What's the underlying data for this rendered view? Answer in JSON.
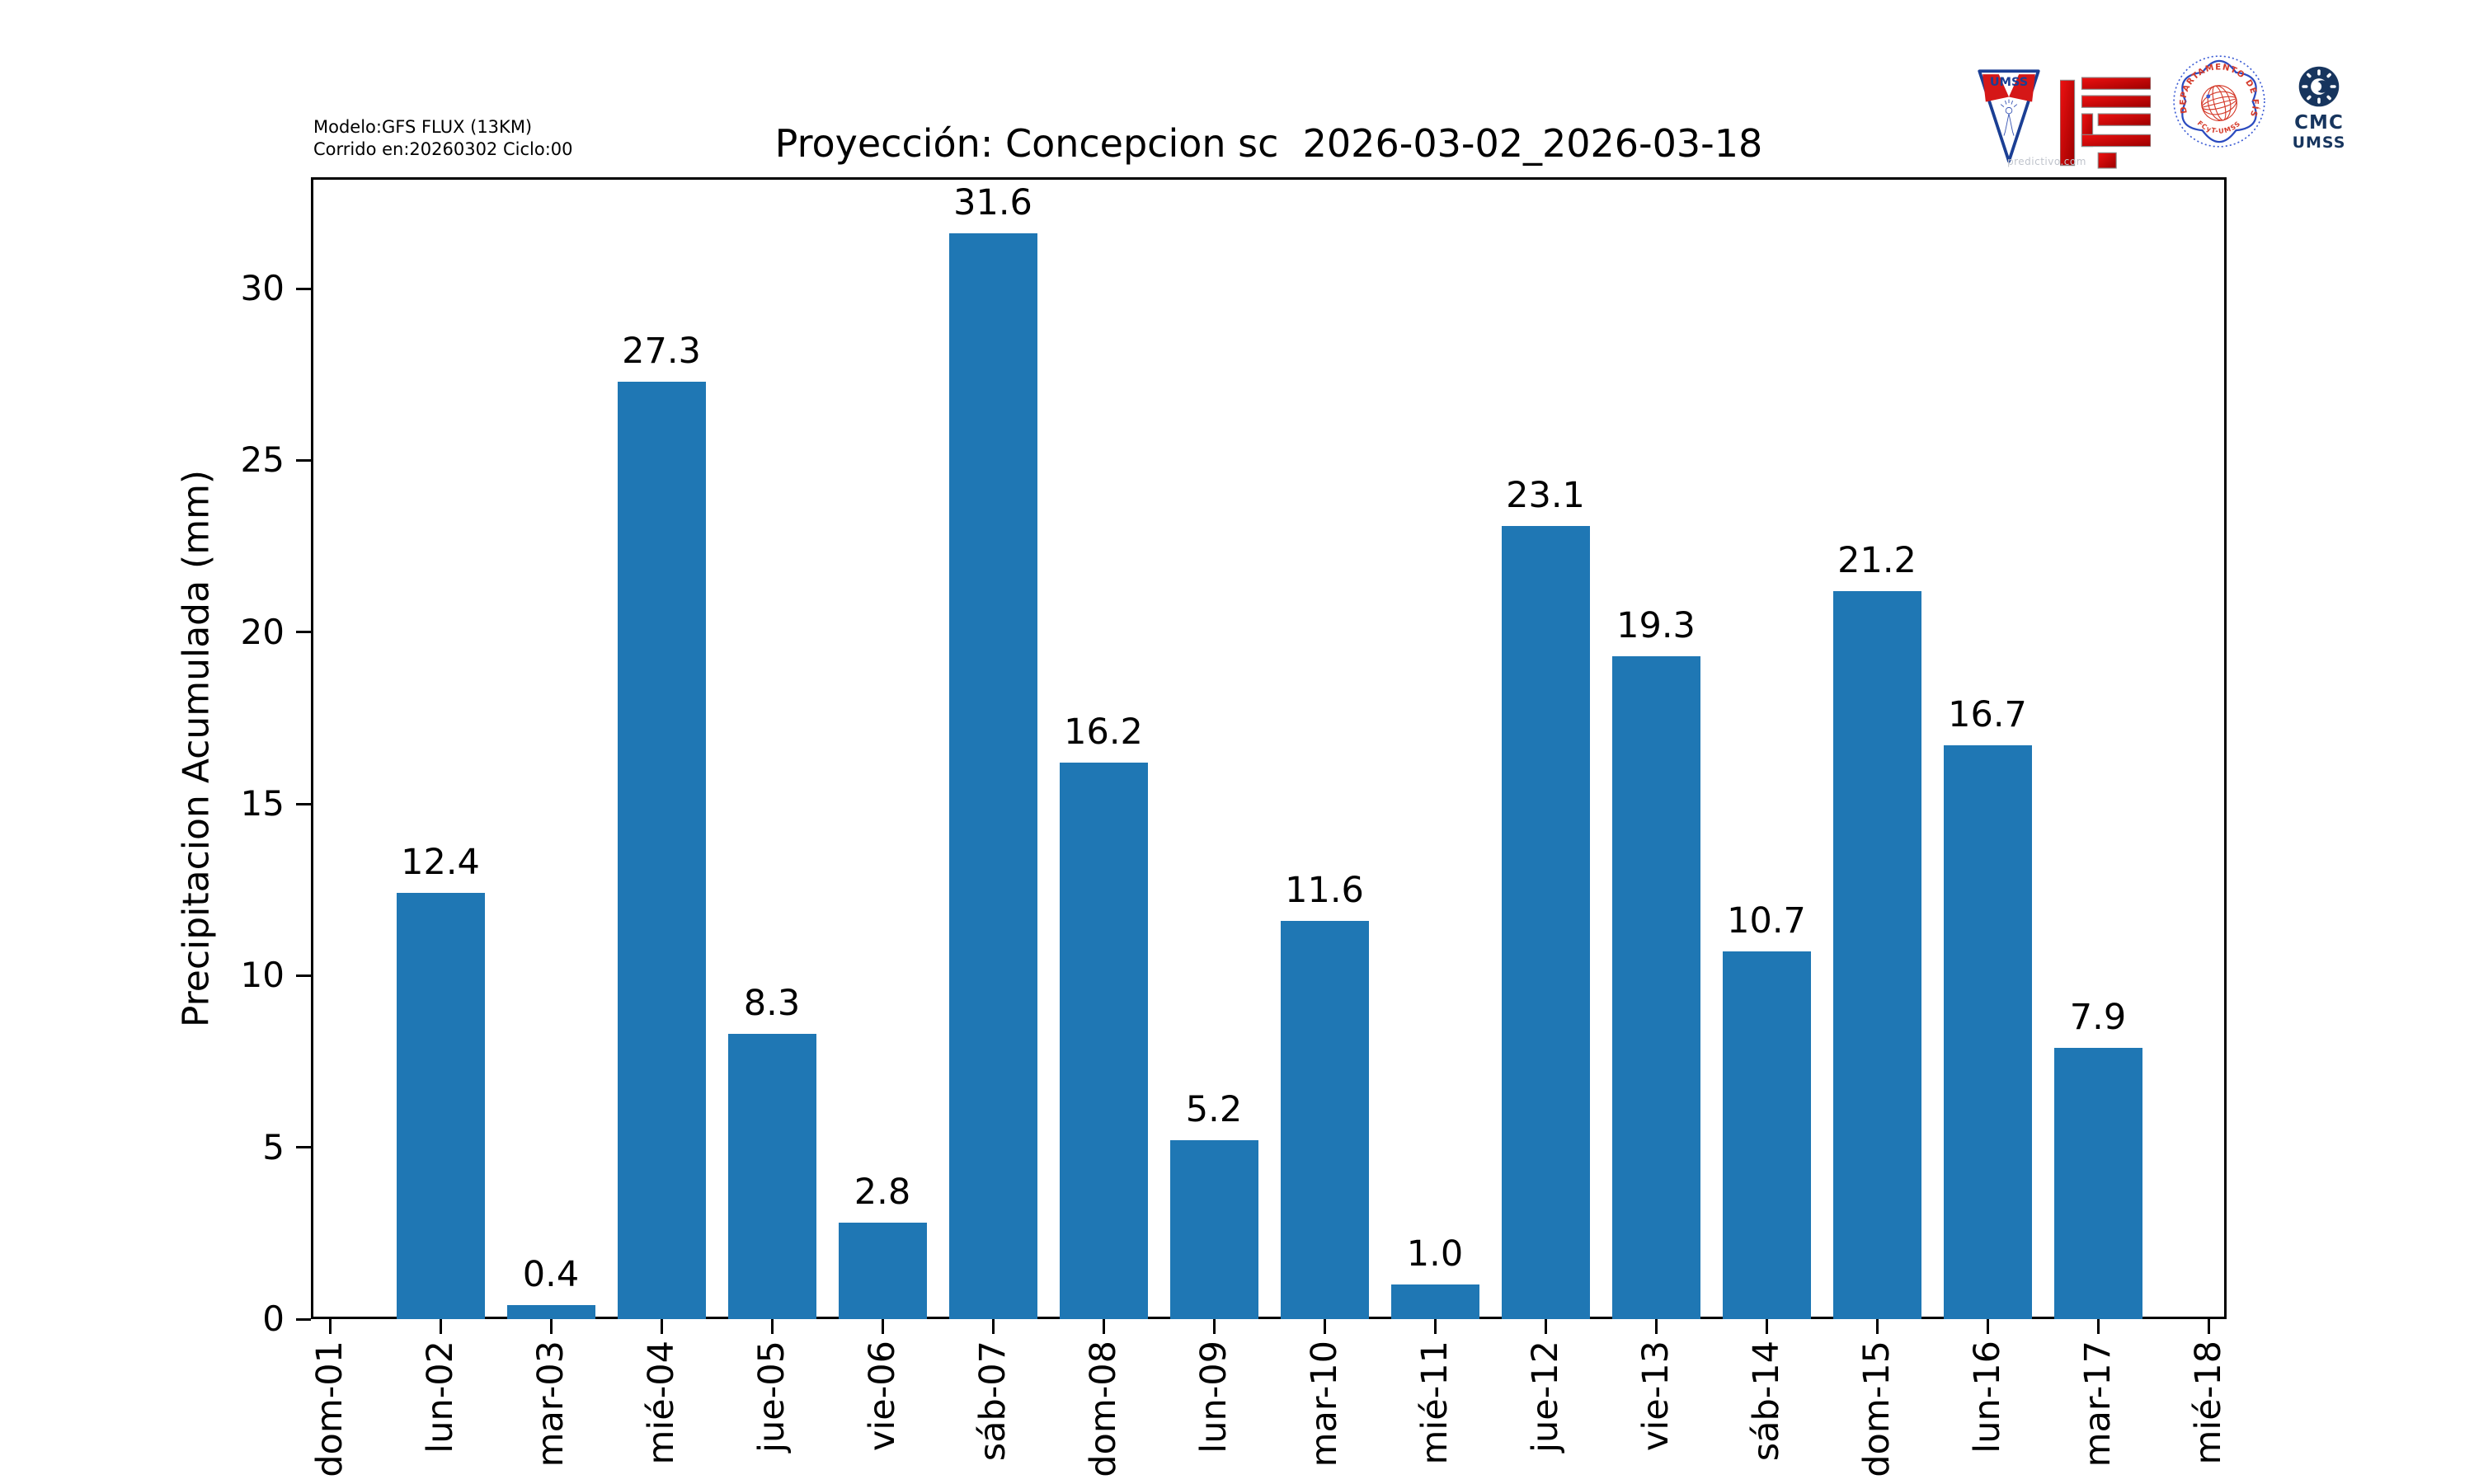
{
  "header": {
    "model_line1": "Modelo:GFS FLUX (13KM)",
    "model_line2": "Corrido en:20260302 Ciclo:00",
    "title": "Proyección: Concepcion sc  2026-03-02_2026-03-18",
    "watermark": "predictivo.com",
    "logos": {
      "pennant_text": "UMSS",
      "seal_text_top": "DEPARTAMENTO DE FÍSICA",
      "seal_text_bottom": "FCyT-UMSS",
      "cmc_line1": "CMC",
      "cmc_line2": "UMSS"
    }
  },
  "chart_data": {
    "type": "bar",
    "title": "Proyección: Concepcion sc  2026-03-02_2026-03-18",
    "ylabel": "Precipitacion Acumulada (mm)",
    "xlabel": "",
    "categories": [
      "dom-01",
      "lun-02",
      "mar-03",
      "mié-04",
      "jue-05",
      "vie-06",
      "sáb-07",
      "dom-08",
      "lun-09",
      "mar-10",
      "mié-11",
      "jue-12",
      "vie-13",
      "sáb-14",
      "dom-15",
      "lun-16",
      "mar-17",
      "mié-18"
    ],
    "values": [
      0.0,
      12.4,
      0.4,
      27.3,
      8.3,
      2.8,
      31.6,
      16.2,
      5.2,
      11.6,
      1.0,
      23.1,
      19.3,
      10.7,
      21.2,
      16.7,
      7.9,
      0.0
    ],
    "value_label_decimals": 1,
    "yticks": [
      0,
      5,
      10,
      15,
      20,
      25,
      30
    ],
    "ylim": [
      0,
      33.24
    ],
    "bar_color": "#1f77b4",
    "grid": false,
    "legend": null
  }
}
